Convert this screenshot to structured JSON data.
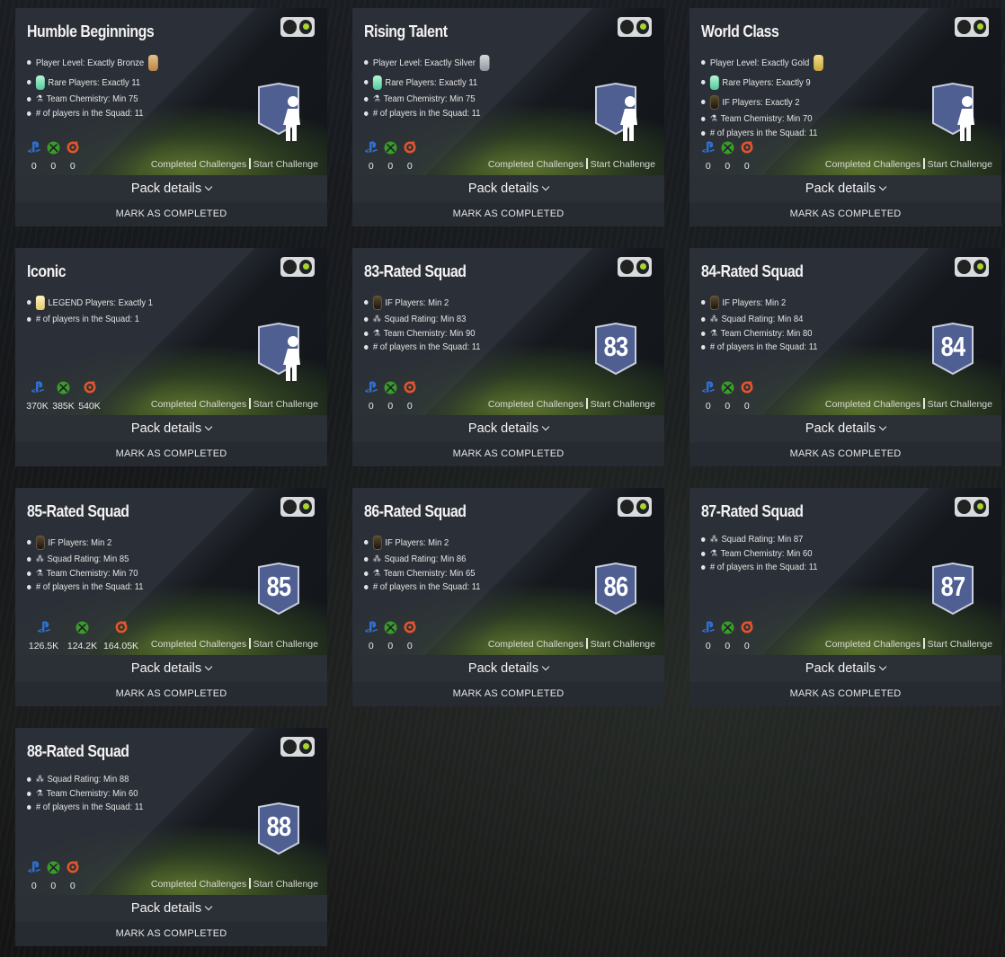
{
  "cards": [
    {
      "title": "Humble Beginnings",
      "requirements": [
        {
          "text": "Player Level: Exactly Bronze",
          "icon": "bronze-card-icon",
          "icon_pos": "after"
        },
        {
          "text": "Rare Players: Exactly 11",
          "icon": "rare-card-icon",
          "icon_pos": "before"
        },
        {
          "text": "Team Chemistry: Min 75",
          "icon": "chemistry-flask-icon",
          "icon_pos": "before"
        },
        {
          "text": "# of players in the Squad: 11",
          "icon": "",
          "icon_pos": "none"
        }
      ],
      "badge": {
        "type": "player",
        "label": ""
      },
      "prices": [
        "0",
        "0",
        "0"
      ],
      "completed_label": "Completed Challenges",
      "start_label": "Start Challenge",
      "pack_label": "Pack details",
      "mark_label": "MARK AS COMPLETED"
    },
    {
      "title": "Rising Talent",
      "requirements": [
        {
          "text": "Player Level: Exactly Silver",
          "icon": "silver-card-icon",
          "icon_pos": "after"
        },
        {
          "text": "Rare Players: Exactly 11",
          "icon": "rare-card-icon",
          "icon_pos": "before"
        },
        {
          "text": "Team Chemistry: Min 75",
          "icon": "chemistry-flask-icon",
          "icon_pos": "before"
        },
        {
          "text": "# of players in the Squad: 11",
          "icon": "",
          "icon_pos": "none"
        }
      ],
      "badge": {
        "type": "player",
        "label": ""
      },
      "prices": [
        "0",
        "0",
        "0"
      ],
      "completed_label": "Completed Challenges",
      "start_label": "Start Challenge",
      "pack_label": "Pack details",
      "mark_label": "MARK AS COMPLETED"
    },
    {
      "title": "World Class",
      "requirements": [
        {
          "text": "Player Level: Exactly Gold",
          "icon": "gold-card-icon",
          "icon_pos": "after"
        },
        {
          "text": "Rare Players: Exactly 9",
          "icon": "rare-card-icon",
          "icon_pos": "before"
        },
        {
          "text": "IF Players: Exactly 2",
          "icon": "if-card-icon",
          "icon_pos": "before"
        },
        {
          "text": "Team Chemistry: Min 70",
          "icon": "chemistry-flask-icon",
          "icon_pos": "before"
        },
        {
          "text": "# of players in the Squad: 11",
          "icon": "",
          "icon_pos": "none"
        }
      ],
      "badge": {
        "type": "player",
        "label": ""
      },
      "prices": [
        "0",
        "0",
        "0"
      ],
      "completed_label": "Completed Challenges",
      "start_label": "Start Challenge",
      "pack_label": "Pack details",
      "mark_label": "MARK AS COMPLETED"
    },
    {
      "title": "Iconic",
      "requirements": [
        {
          "text": "LEGEND Players: Exactly 1",
          "icon": "legend-card-icon",
          "icon_pos": "before"
        },
        {
          "text": "# of players in the Squad: 1",
          "icon": "",
          "icon_pos": "none"
        }
      ],
      "badge": {
        "type": "player",
        "label": ""
      },
      "prices": [
        "370K",
        "385K",
        "540K"
      ],
      "completed_label": "Completed Challenges",
      "start_label": "Start Challenge",
      "pack_label": "Pack details",
      "mark_label": "MARK AS COMPLETED"
    },
    {
      "title": "83-Rated Squad",
      "requirements": [
        {
          "text": "IF Players: Min 2",
          "icon": "if-card-icon",
          "icon_pos": "before"
        },
        {
          "text": "Squad Rating: Min 83",
          "icon": "squad-rating-icon",
          "icon_pos": "before"
        },
        {
          "text": "Team Chemistry: Min 90",
          "icon": "chemistry-flask-icon",
          "icon_pos": "before"
        },
        {
          "text": "# of players in the Squad: 11",
          "icon": "",
          "icon_pos": "none"
        }
      ],
      "badge": {
        "type": "number",
        "label": "83"
      },
      "prices": [
        "0",
        "0",
        "0"
      ],
      "completed_label": "Completed Challenges",
      "start_label": "Start Challenge",
      "pack_label": "Pack details",
      "mark_label": "MARK AS COMPLETED"
    },
    {
      "title": "84-Rated Squad",
      "requirements": [
        {
          "text": "IF Players: Min 2",
          "icon": "if-card-icon",
          "icon_pos": "before"
        },
        {
          "text": "Squad Rating: Min 84",
          "icon": "squad-rating-icon",
          "icon_pos": "before"
        },
        {
          "text": "Team Chemistry: Min 80",
          "icon": "chemistry-flask-icon",
          "icon_pos": "before"
        },
        {
          "text": "# of players in the Squad: 11",
          "icon": "",
          "icon_pos": "none"
        }
      ],
      "badge": {
        "type": "number",
        "label": "84"
      },
      "prices": [
        "0",
        "0",
        "0"
      ],
      "completed_label": "Completed Challenges",
      "start_label": "Start Challenge",
      "pack_label": "Pack details",
      "mark_label": "MARK AS COMPLETED"
    },
    {
      "title": "85-Rated Squad",
      "requirements": [
        {
          "text": "IF Players: Min 2",
          "icon": "if-card-icon",
          "icon_pos": "before"
        },
        {
          "text": "Squad Rating: Min 85",
          "icon": "squad-rating-icon",
          "icon_pos": "before"
        },
        {
          "text": "Team Chemistry: Min 70",
          "icon": "chemistry-flask-icon",
          "icon_pos": "before"
        },
        {
          "text": "# of players in the Squad: 11",
          "icon": "",
          "icon_pos": "none"
        }
      ],
      "badge": {
        "type": "number",
        "label": "85"
      },
      "prices": [
        "126.5K",
        "124.2K",
        "164.05K"
      ],
      "completed_label": "Completed Challenges",
      "start_label": "Start Challenge",
      "pack_label": "Pack details",
      "mark_label": "MARK AS COMPLETED"
    },
    {
      "title": "86-Rated Squad",
      "requirements": [
        {
          "text": "IF Players: Min 2",
          "icon": "if-card-icon",
          "icon_pos": "before"
        },
        {
          "text": "Squad Rating: Min 86",
          "icon": "squad-rating-icon",
          "icon_pos": "before"
        },
        {
          "text": "Team Chemistry: Min 65",
          "icon": "chemistry-flask-icon",
          "icon_pos": "before"
        },
        {
          "text": "# of players in the Squad: 11",
          "icon": "",
          "icon_pos": "none"
        }
      ],
      "badge": {
        "type": "number",
        "label": "86"
      },
      "prices": [
        "0",
        "0",
        "0"
      ],
      "completed_label": "Completed Challenges",
      "start_label": "Start Challenge",
      "pack_label": "Pack details",
      "mark_label": "MARK AS COMPLETED"
    },
    {
      "title": "87-Rated Squad",
      "requirements": [
        {
          "text": "Squad Rating: Min 87",
          "icon": "squad-rating-icon",
          "icon_pos": "before"
        },
        {
          "text": "Team Chemistry: Min 60",
          "icon": "chemistry-flask-icon",
          "icon_pos": "before"
        },
        {
          "text": "# of players in the Squad: 11",
          "icon": "",
          "icon_pos": "none"
        }
      ],
      "badge": {
        "type": "number",
        "label": "87"
      },
      "prices": [
        "0",
        "0",
        "0"
      ],
      "completed_label": "Completed Challenges",
      "start_label": "Start Challenge",
      "pack_label": "Pack details",
      "mark_label": "MARK AS COMPLETED"
    },
    {
      "title": "88-Rated Squad",
      "requirements": [
        {
          "text": "Squad Rating: Min 88",
          "icon": "squad-rating-icon",
          "icon_pos": "before"
        },
        {
          "text": "Team Chemistry: Min 60",
          "icon": "chemistry-flask-icon",
          "icon_pos": "before"
        },
        {
          "text": "# of players in the Squad: 11",
          "icon": "",
          "icon_pos": "none"
        }
      ],
      "badge": {
        "type": "number",
        "label": "88"
      },
      "prices": [
        "0",
        "0",
        "0"
      ],
      "completed_label": "Completed Challenges",
      "start_label": "Start Challenge",
      "pack_label": "Pack details",
      "mark_label": "MARK AS COMPLETED"
    }
  ],
  "colors": {
    "badge_fill": "#4f5f91",
    "badge_stroke": "#c9cfdf",
    "toggle_on": "#a5d630",
    "playstation": "#2f6fd1",
    "xbox": "#3a9a2c",
    "pc_origin": "#e2552d"
  }
}
